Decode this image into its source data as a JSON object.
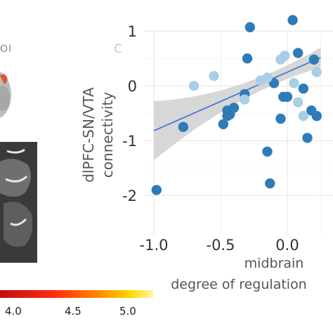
{
  "left_panel": {
    "roi_label": "OI",
    "colorbar_ticks": [
      "4.0",
      "4.5",
      "5.0"
    ]
  },
  "panel_letter": "C",
  "chart_data": {
    "type": "scatter",
    "title": "",
    "xlabel_line1": "midbrain",
    "xlabel_line2": "degree of regulation",
    "ylabel_line1": "dlPFC-SN/VTA",
    "ylabel_line2": "connectivity",
    "xlim": [
      -1.0,
      0.25
    ],
    "ylim": [
      -2.1,
      1.4
    ],
    "xticks": [
      -1.0,
      -0.5,
      0.0
    ],
    "xtick_labels": [
      "-1.0",
      "-0.5",
      "0.0"
    ],
    "yticks": [
      -2,
      -1,
      0,
      1
    ],
    "ytick_labels": [
      "-2",
      "-1",
      "0",
      "1"
    ],
    "grid": true,
    "regression": {
      "intercept": 0.25,
      "slope": 1.07
    },
    "series": [
      {
        "color": "#2e7bb8",
        "points": [
          [
            -0.98,
            -1.9
          ],
          [
            -0.78,
            -0.75
          ],
          [
            -0.45,
            -0.45
          ],
          [
            -0.45,
            -0.55
          ],
          [
            -0.48,
            -0.7
          ],
          [
            -0.43,
            -0.52
          ],
          [
            -0.4,
            -0.4
          ],
          [
            -0.32,
            -0.15
          ],
          [
            -0.3,
            0.5
          ],
          [
            -0.28,
            1.07
          ],
          [
            -0.15,
            -1.2
          ],
          [
            -0.13,
            -1.78
          ],
          [
            -0.1,
            0.05
          ],
          [
            -0.05,
            -0.6
          ],
          [
            -0.03,
            -0.2
          ],
          [
            0.0,
            -0.2
          ],
          [
            0.04,
            1.2
          ],
          [
            0.08,
            0.6
          ],
          [
            0.12,
            -0.05
          ],
          [
            0.15,
            -0.95
          ],
          [
            0.18,
            -0.45
          ],
          [
            0.2,
            0.48
          ],
          [
            0.22,
            -0.55
          ]
        ]
      },
      {
        "color": "#a9cfe6",
        "points": [
          [
            -0.7,
            0.0
          ],
          [
            -0.55,
            0.18
          ],
          [
            -0.32,
            -0.25
          ],
          [
            -0.2,
            0.1
          ],
          [
            -0.15,
            0.15
          ],
          [
            -0.05,
            0.48
          ],
          [
            -0.02,
            0.55
          ],
          [
            0.05,
            0.05
          ],
          [
            0.08,
            -0.3
          ],
          [
            0.12,
            -0.55
          ],
          [
            0.22,
            0.25
          ]
        ]
      }
    ]
  }
}
